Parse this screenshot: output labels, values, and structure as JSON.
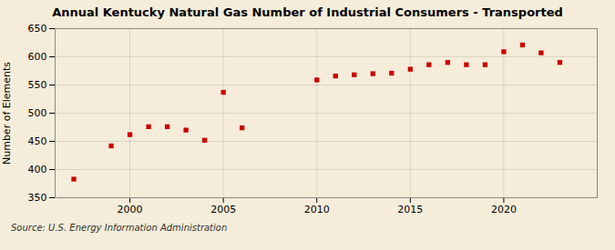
{
  "chart_data": {
    "type": "scatter",
    "title": "Annual Kentucky Natural Gas Number of Industrial Consumers - Transported",
    "ylabel": "Number of Elements",
    "source": "Source: U.S. Energy Information Administration",
    "x": [
      1997,
      1999,
      2000,
      2001,
      2002,
      2003,
      2004,
      2005,
      2006,
      2010,
      2011,
      2012,
      2013,
      2014,
      2015,
      2016,
      2017,
      2018,
      2019,
      2020,
      2021,
      2022,
      2023
    ],
    "values": [
      383,
      442,
      462,
      476,
      476,
      470,
      452,
      537,
      474,
      559,
      566,
      568,
      570,
      571,
      578,
      586,
      590,
      586,
      586,
      609,
      621,
      607,
      590
    ],
    "color": "#cc0000",
    "marker": "square",
    "xlim": [
      1996,
      2025
    ],
    "ylim": [
      350,
      650
    ],
    "xticks": [
      2000,
      2005,
      2010,
      2015,
      2020
    ],
    "yticks": [
      350,
      400,
      450,
      500,
      550,
      600,
      650
    ],
    "grid": true
  }
}
